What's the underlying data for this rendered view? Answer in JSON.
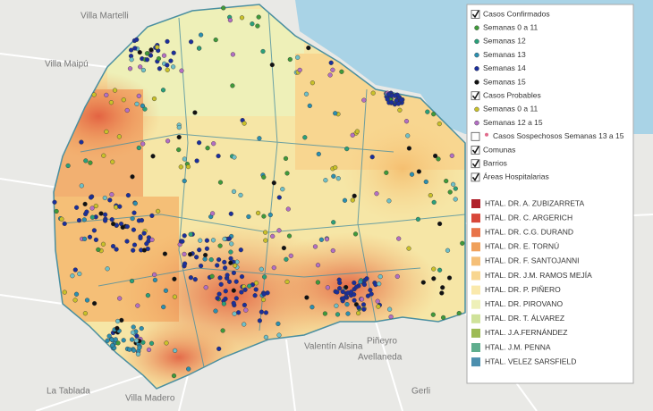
{
  "map": {
    "places": [
      "Villa Martelli",
      "Villa Maipú",
      "Valentín Alsina",
      "Avellaneda",
      "La Tablada",
      "Villa Madero",
      "Gerli",
      "Piñeyro"
    ],
    "legend": {
      "items": [
        {
          "label": "Casos Confirmados",
          "kind": "check",
          "checked": true
        },
        {
          "label": "Semanas 0 a 11",
          "kind": "dot",
          "color": "#3f9a3a"
        },
        {
          "label": "Semanas 12",
          "kind": "dot",
          "color": "#2aa07a"
        },
        {
          "label": "Semanas 13",
          "kind": "dot",
          "color": "#2b8fb0"
        },
        {
          "label": "Semanas 14",
          "kind": "dot",
          "color": "#1b2f9c"
        },
        {
          "label": "Semanas 15",
          "kind": "dot",
          "color": "#111111"
        },
        {
          "label": "Casos Probables",
          "kind": "check",
          "checked": true
        },
        {
          "label": "Semanas 0 a 11",
          "kind": "dot",
          "color": "#c9c12a"
        },
        {
          "label": "Semanas 12 a 15",
          "kind": "dot",
          "color": "#b36fc4"
        },
        {
          "label": "Casos Sospechosos Semanas 13 a 15",
          "kind": "check-dot",
          "checked": false,
          "color": "#e06c8c"
        },
        {
          "label": "Comunas",
          "kind": "check",
          "checked": true
        },
        {
          "label": "Barrios",
          "kind": "check",
          "checked": true
        },
        {
          "label": "Áreas Hospitalarias",
          "kind": "check",
          "checked": true
        }
      ],
      "hospitals": [
        {
          "label": "HTAL. DR. A. ZUBIZARRETA",
          "color": "#b0202a"
        },
        {
          "label": "HTAL. DR. C. ARGERICH",
          "color": "#d8473a"
        },
        {
          "label": "HTAL. DR. C.G. DURAND",
          "color": "#e8744a"
        },
        {
          "label": "HTAL. DR. E. TORNÚ",
          "color": "#f0a15c"
        },
        {
          "label": "HTAL. DR. F. SANTOJANNI",
          "color": "#f5bf77"
        },
        {
          "label": "HTAL. DR. J.M. RAMOS MEJÍA",
          "color": "#f8d690"
        },
        {
          "label": "HTAL. DR. P. PIÑERO",
          "color": "#fae9ac"
        },
        {
          "label": "HTAL. DR. PIROVANO",
          "color": "#eef0b8"
        },
        {
          "label": "HTAL. DR. T. ÁLVAREZ",
          "color": "#cfe29a"
        },
        {
          "label": "HTAL. J.A.FERNÁNDEZ",
          "color": "#9dbb55"
        },
        {
          "label": "HTAL. J.M. PENNA",
          "color": "#5fae8e"
        },
        {
          "label": "HTAL. VELEZ SARSFIELD",
          "color": "#4c8fae"
        }
      ]
    }
  }
}
